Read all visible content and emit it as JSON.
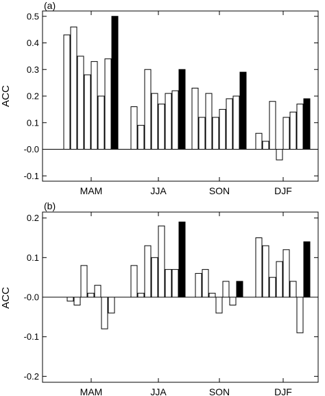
{
  "chart_data": [
    {
      "panel_label": "(a)",
      "type": "bar",
      "ylabel": "ACC",
      "ylim": [
        -0.12,
        0.52
      ],
      "yticks": [
        -0.1,
        0.0,
        0.1,
        0.2,
        0.3,
        0.4,
        0.5
      ],
      "ytick_labels": [
        "-0.1",
        "-0.0",
        "0.1",
        "0.2",
        "0.3",
        "0.4",
        "0.5"
      ],
      "categories": [
        "MAM",
        "JJA",
        "SON",
        "DJF"
      ],
      "values": [
        [
          0.43,
          0.46,
          0.35,
          0.28,
          0.33,
          0.2,
          0.34,
          0.5
        ],
        [
          0.16,
          0.09,
          0.3,
          0.21,
          0.17,
          0.21,
          0.22,
          0.3
        ],
        [
          0.23,
          0.12,
          0.21,
          0.12,
          0.15,
          0.19,
          0.2,
          0.29
        ],
        [
          0.06,
          0.03,
          0.18,
          -0.04,
          0.12,
          0.14,
          0.17,
          0.19
        ]
      ],
      "bar_fills": [
        "#ffffff",
        "#ffffff",
        "#ffffff",
        "#ffffff",
        "#ffffff",
        "#ffffff",
        "#ffffff",
        "#000000"
      ]
    },
    {
      "panel_label": "(b)",
      "type": "bar",
      "ylabel": "ACC",
      "ylim": [
        -0.215,
        0.215
      ],
      "yticks": [
        -0.2,
        -0.1,
        0.0,
        0.1,
        0.2
      ],
      "ytick_labels": [
        "-0.2",
        "-0.1",
        "-0.0",
        "0.1",
        "0.2"
      ],
      "categories": [
        "MAM",
        "JJA",
        "SON",
        "DJF"
      ],
      "values": [
        [
          -0.01,
          -0.02,
          0.08,
          0.01,
          0.03,
          -0.08,
          -0.04
        ],
        [
          0.08,
          0.01,
          0.13,
          0.1,
          0.18,
          0.07,
          0.07,
          0.19
        ],
        [
          0.06,
          0.07,
          0.01,
          -0.04,
          0.04,
          -0.02,
          0.04
        ],
        [
          0.15,
          0.13,
          0.05,
          0.09,
          0.12,
          0.04,
          -0.09,
          0.14
        ]
      ],
      "bar_fills_by_category": [
        [
          "#ffffff",
          "#ffffff",
          "#ffffff",
          "#ffffff",
          "#ffffff",
          "#ffffff",
          "#ffffff"
        ],
        [
          "#ffffff",
          "#ffffff",
          "#ffffff",
          "#ffffff",
          "#ffffff",
          "#ffffff",
          "#ffffff",
          "#000000"
        ],
        [
          "#ffffff",
          "#ffffff",
          "#ffffff",
          "#ffffff",
          "#ffffff",
          "#ffffff",
          "#000000"
        ],
        [
          "#ffffff",
          "#ffffff",
          "#ffffff",
          "#ffffff",
          "#ffffff",
          "#ffffff",
          "#ffffff",
          "#000000"
        ]
      ]
    }
  ]
}
